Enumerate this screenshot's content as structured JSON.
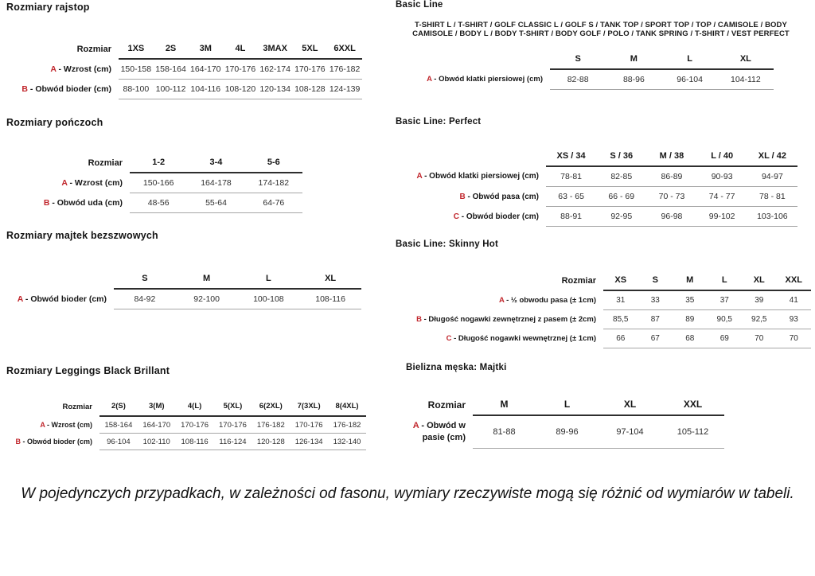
{
  "colors": {
    "accent_red": "#c1272d",
    "rule_dark": "#2e2e2e",
    "rule_light": "#a6a6a6"
  },
  "left_sections": [
    {
      "title": "Rozmiary rajstop",
      "table": {
        "corner_label": "Rozmiar",
        "columns": [
          "1XS",
          "2S",
          "3M",
          "4L",
          "3MAX",
          "5XL",
          "6XXL"
        ],
        "rows": [
          {
            "letter": "A",
            "label": "- Wzrost (cm)",
            "values": [
              "150-158",
              "158-164",
              "164-170",
              "170-176",
              "162-174",
              "170-176",
              "176-182"
            ]
          },
          {
            "letter": "B",
            "label": "- Obwód bioder (cm)",
            "values": [
              "88-100",
              "100-112",
              "104-116",
              "108-120",
              "120-134",
              "108-128",
              "124-139"
            ]
          }
        ]
      }
    },
    {
      "title": "Rozmiary pończoch",
      "table": {
        "corner_label": "Rozmiar",
        "columns": [
          "1-2",
          "3-4",
          "5-6"
        ],
        "rows": [
          {
            "letter": "A",
            "label": "- Wzrost (cm)",
            "values": [
              "150-166",
              "164-178",
              "174-182"
            ]
          },
          {
            "letter": "B",
            "label": "- Obwód uda (cm)",
            "values": [
              "48-56",
              "55-64",
              "64-76"
            ]
          }
        ]
      }
    },
    {
      "title": "Rozmiary majtek bezszwowych",
      "table": {
        "corner_label": "",
        "columns": [
          "S",
          "M",
          "L",
          "XL"
        ],
        "rows": [
          {
            "letter": "A",
            "label": "- Obwód bioder (cm)",
            "values": [
              "84-92",
              "92-100",
              "100-108",
              "108-116"
            ]
          }
        ]
      }
    },
    {
      "title": "Rozmiary Leggings Black Brillant",
      "table": {
        "corner_label": "Rozmiar",
        "columns": [
          "2(S)",
          "3(M)",
          "4(L)",
          "5(XL)",
          "6(2XL)",
          "7(3XL)",
          "8(4XL)"
        ],
        "rows": [
          {
            "letter": "A",
            "label": "- Wzrost (cm)",
            "values": [
              "158-164",
              "164-170",
              "170-176",
              "170-176",
              "176-182",
              "170-176",
              "176-182"
            ]
          },
          {
            "letter": "B",
            "label": "- Obwód bioder (cm)",
            "values": [
              "96-104",
              "102-110",
              "108-116",
              "116-124",
              "120-128",
              "126-134",
              "132-140"
            ]
          }
        ]
      }
    }
  ],
  "right_sections": [
    {
      "title": "Basic Line",
      "subtitle": "T-SHIRT L / T-SHIRT / GOLF CLASSIC L / GOLF S / TANK TOP / SPORT TOP / TOP / CAMISOLE / BODY CAMISOLE / BODY L / BODY T-SHIRT / BODY GOLF / POLO / TANK SPRING / T-SHIRT / VEST PERFECT",
      "table": {
        "corner_label": "",
        "columns": [
          "S",
          "M",
          "L",
          "XL"
        ],
        "rows": [
          {
            "letter": "A",
            "label": "- Obwód klatki piersiowej (cm)",
            "values": [
              "82-88",
              "88-96",
              "96-104",
              "104-112"
            ]
          }
        ]
      }
    },
    {
      "title": "Basic Line: Perfect",
      "table": {
        "corner_label": "",
        "columns": [
          "XS / 34",
          "S / 36",
          "M / 38",
          "L / 40",
          "XL / 42"
        ],
        "rows": [
          {
            "letter": "A",
            "label": "- Obwód klatki piersiowej (cm)",
            "values": [
              "78-81",
              "82-85",
              "86-89",
              "90-93",
              "94-97"
            ]
          },
          {
            "letter": "B",
            "label": "- Obwód pasa (cm)",
            "values": [
              "63 - 65",
              "66 - 69",
              "70 - 73",
              "74 - 77",
              "78 - 81"
            ]
          },
          {
            "letter": "C",
            "label": "- Obwód bioder (cm)",
            "values": [
              "88-91",
              "92-95",
              "96-98",
              "99-102",
              "103-106"
            ]
          }
        ]
      }
    },
    {
      "title": "Basic Line: Skinny Hot",
      "table": {
        "corner_label": "Rozmiar",
        "columns": [
          "XS",
          "S",
          "M",
          "L",
          "XL",
          "XXL"
        ],
        "rows": [
          {
            "letter": "A",
            "label": "- ½ obwodu pasa (± 1cm)",
            "values": [
              "31",
              "33",
              "35",
              "37",
              "39",
              "41"
            ]
          },
          {
            "letter": "B",
            "label": "- Długość nogawki zewnętrznej z pasem (± 2cm)",
            "values": [
              "85,5",
              "87",
              "89",
              "90,5",
              "92,5",
              "93"
            ]
          },
          {
            "letter": "C",
            "label": "- Długość nogawki wewnętrznej (± 1cm)",
            "values": [
              "66",
              "67",
              "68",
              "69",
              "70",
              "70"
            ]
          }
        ]
      }
    },
    {
      "title": "Bielizna męska: Majtki",
      "table": {
        "corner_label": "Rozmiar",
        "columns": [
          "M",
          "L",
          "XL",
          "XXL"
        ],
        "rows": [
          {
            "letter": "A",
            "label": "- Obwód w pasie (cm)",
            "values": [
              "81-88",
              "89-96",
              "97-104",
              "105-112"
            ]
          }
        ]
      }
    }
  ],
  "footer_note": "W pojedynczych przypadkach, w zależności od fasonu, wymiary rzeczywiste mogą się różnić od wymiarów w tabeli."
}
